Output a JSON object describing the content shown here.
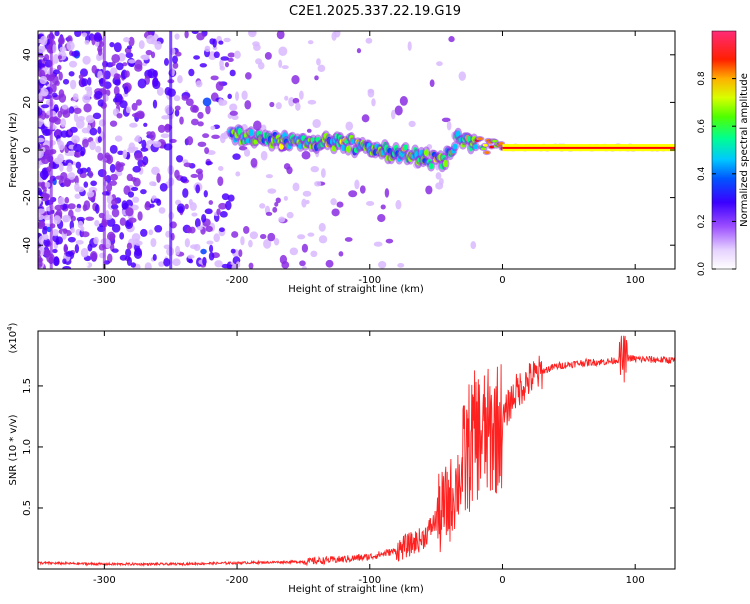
{
  "title": "C2E1.2025.337.22.19.G19",
  "chart_data": [
    {
      "type": "heatmap",
      "xlabel": "Height of straight line (km)",
      "ylabel": "Frequency (Hz)",
      "xlim": [
        -350,
        130
      ],
      "ylim": [
        -50,
        50
      ],
      "x_ticks": [
        -300,
        -200,
        -100,
        0,
        100
      ],
      "y_ticks": [
        -40,
        -20,
        0,
        20,
        40
      ],
      "colorbar": {
        "label": "Normalized spectral amplitude",
        "range": [
          0,
          1
        ],
        "ticks": [
          0.0,
          0.2,
          0.4,
          0.6,
          0.8
        ],
        "colors": [
          "#ffffff",
          "#d9b8ff",
          "#8a2be2",
          "#4b00ff",
          "#0040ff",
          "#00c8ff",
          "#00ff80",
          "#80ff00",
          "#ffff00",
          "#ff8000",
          "#ff0000",
          "#ff3070"
        ]
      },
      "ridge": {
        "x": [
          -200,
          -180,
          -160,
          -140,
          -120,
          -100,
          -80,
          -60,
          -45,
          -35,
          -20,
          0,
          20,
          60,
          130
        ],
        "freq": [
          6,
          5,
          4,
          3,
          3,
          1,
          -1,
          -3,
          -6,
          4,
          2,
          1,
          1,
          1,
          1
        ]
      }
    },
    {
      "type": "line",
      "xlabel": "Height of straight line (km)",
      "ylabel": "SNR (10 * v/v)",
      "y_multiplier": "(x10",
      "y_multiplier_exp": "4",
      "y_multiplier_close": ")",
      "xlim": [
        -350,
        130
      ],
      "ylim": [
        0,
        1.95
      ],
      "x_ticks": [
        -300,
        -200,
        -100,
        0,
        100
      ],
      "y_ticks": [
        0.5,
        1.0,
        1.5
      ],
      "line_color": "#ff2020",
      "series": [
        {
          "name": "SNR",
          "x": [
            -350,
            -300,
            -250,
            -200,
            -150,
            -120,
            -100,
            -80,
            -60,
            -50,
            -40,
            -30,
            -25,
            -20,
            -10,
            0,
            5,
            10,
            20,
            30,
            40,
            60,
            80,
            90,
            95,
            100,
            130
          ],
          "y": [
            0.05,
            0.04,
            0.04,
            0.05,
            0.06,
            0.08,
            0.1,
            0.15,
            0.25,
            0.4,
            0.55,
            0.8,
            1.0,
            1.1,
            1.1,
            1.2,
            1.35,
            1.45,
            1.55,
            1.62,
            1.66,
            1.69,
            1.7,
            1.72,
            1.73,
            1.72,
            1.71
          ]
        }
      ]
    }
  ]
}
